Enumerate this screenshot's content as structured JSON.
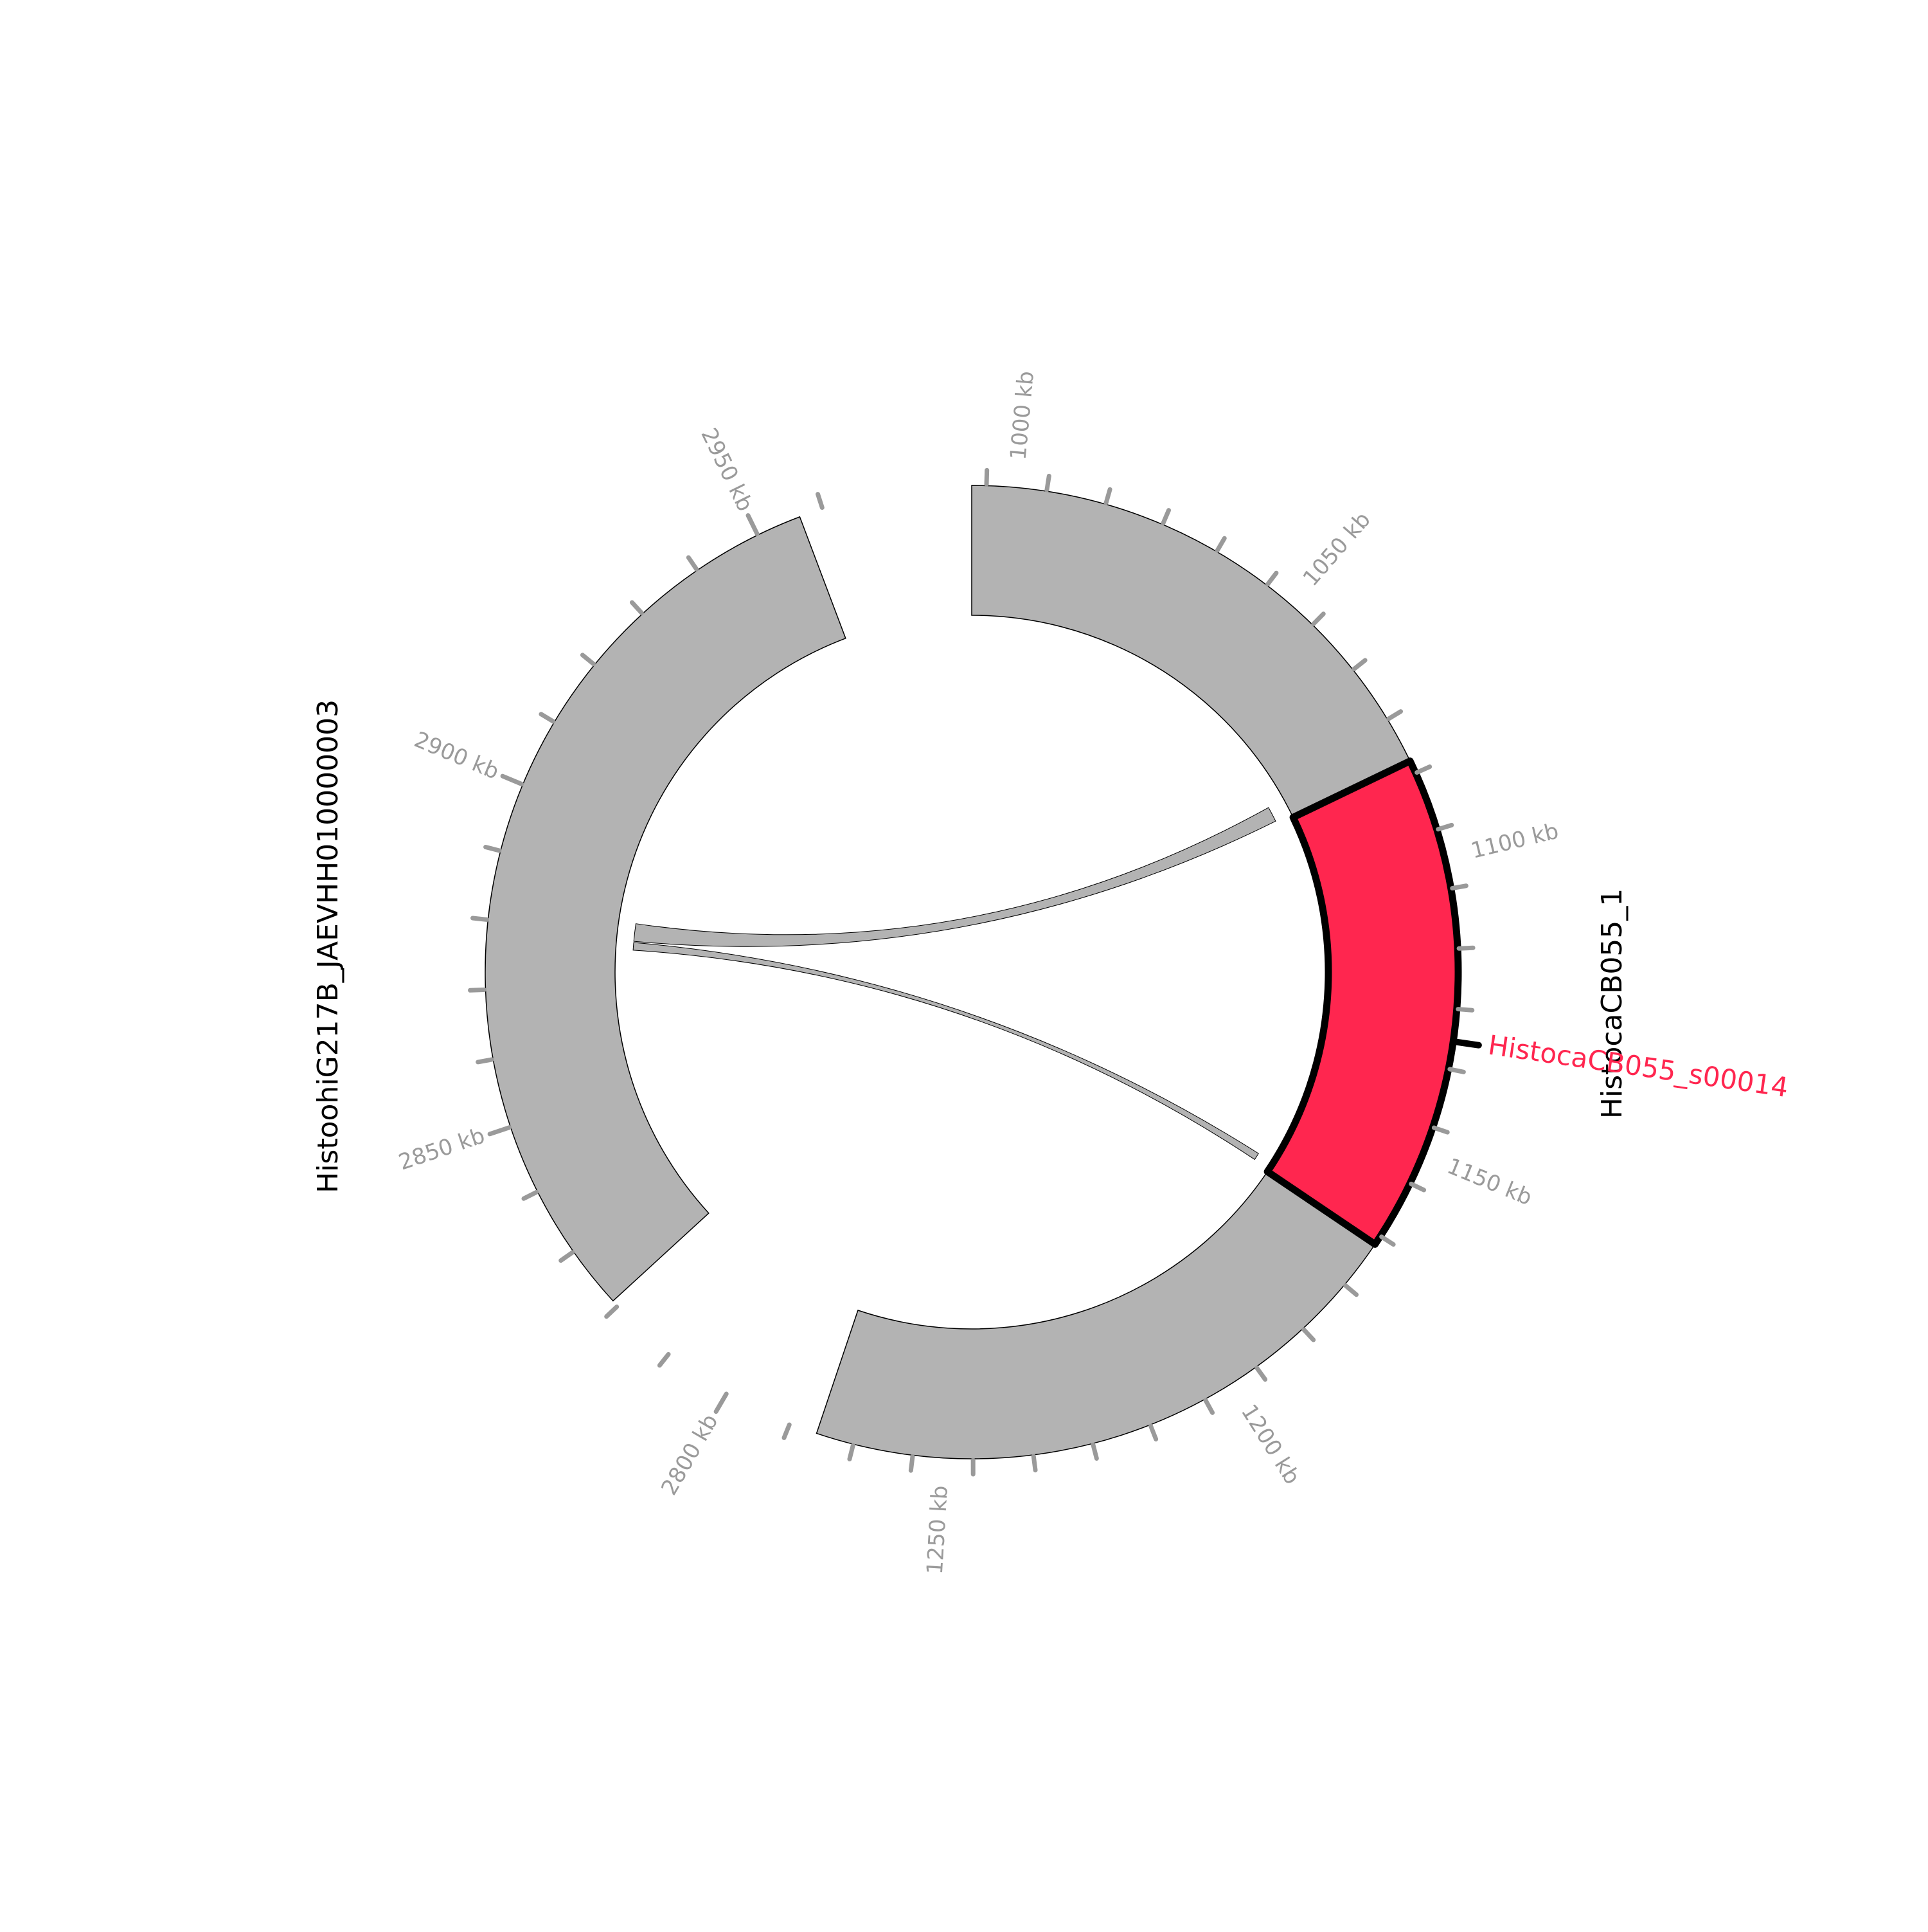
{
  "colors": {
    "contig_fill": "#b3b3b3",
    "contig_stroke": "#000000",
    "highlight_fill": "#ff264f",
    "highlight_stroke": "#000000",
    "link_fill": "#b3b3b3",
    "tick_color": "#9a9a9a",
    "gene_label_color": "#ff264f"
  },
  "contigs": [
    {
      "id": "right",
      "name": "HistocaCB055_1",
      "ticks": [
        {
          "kb": 1000,
          "label": "1000 kb"
        },
        {
          "kb": 1050,
          "label": "1050 kb"
        },
        {
          "kb": 1100,
          "label": "1100 kb"
        },
        {
          "kb": 1150,
          "label": "1150 kb"
        },
        {
          "kb": 1200,
          "label": "1200 kb"
        },
        {
          "kb": 1250,
          "label": "1250 kb"
        }
      ]
    },
    {
      "id": "left",
      "name": "HistoohiG217B_JAEVHH010000003",
      "ticks": [
        {
          "kb": 2950,
          "label": "2950 kb"
        },
        {
          "kb": 2900,
          "label": "2900 kb"
        },
        {
          "kb": 2850,
          "label": "2850 kb"
        },
        {
          "kb": 2800,
          "label": "2800 kb"
        }
      ]
    }
  ],
  "highlight": {
    "name": "HistocaCB055_s00014",
    "contig": "HistocaCB055_1"
  }
}
